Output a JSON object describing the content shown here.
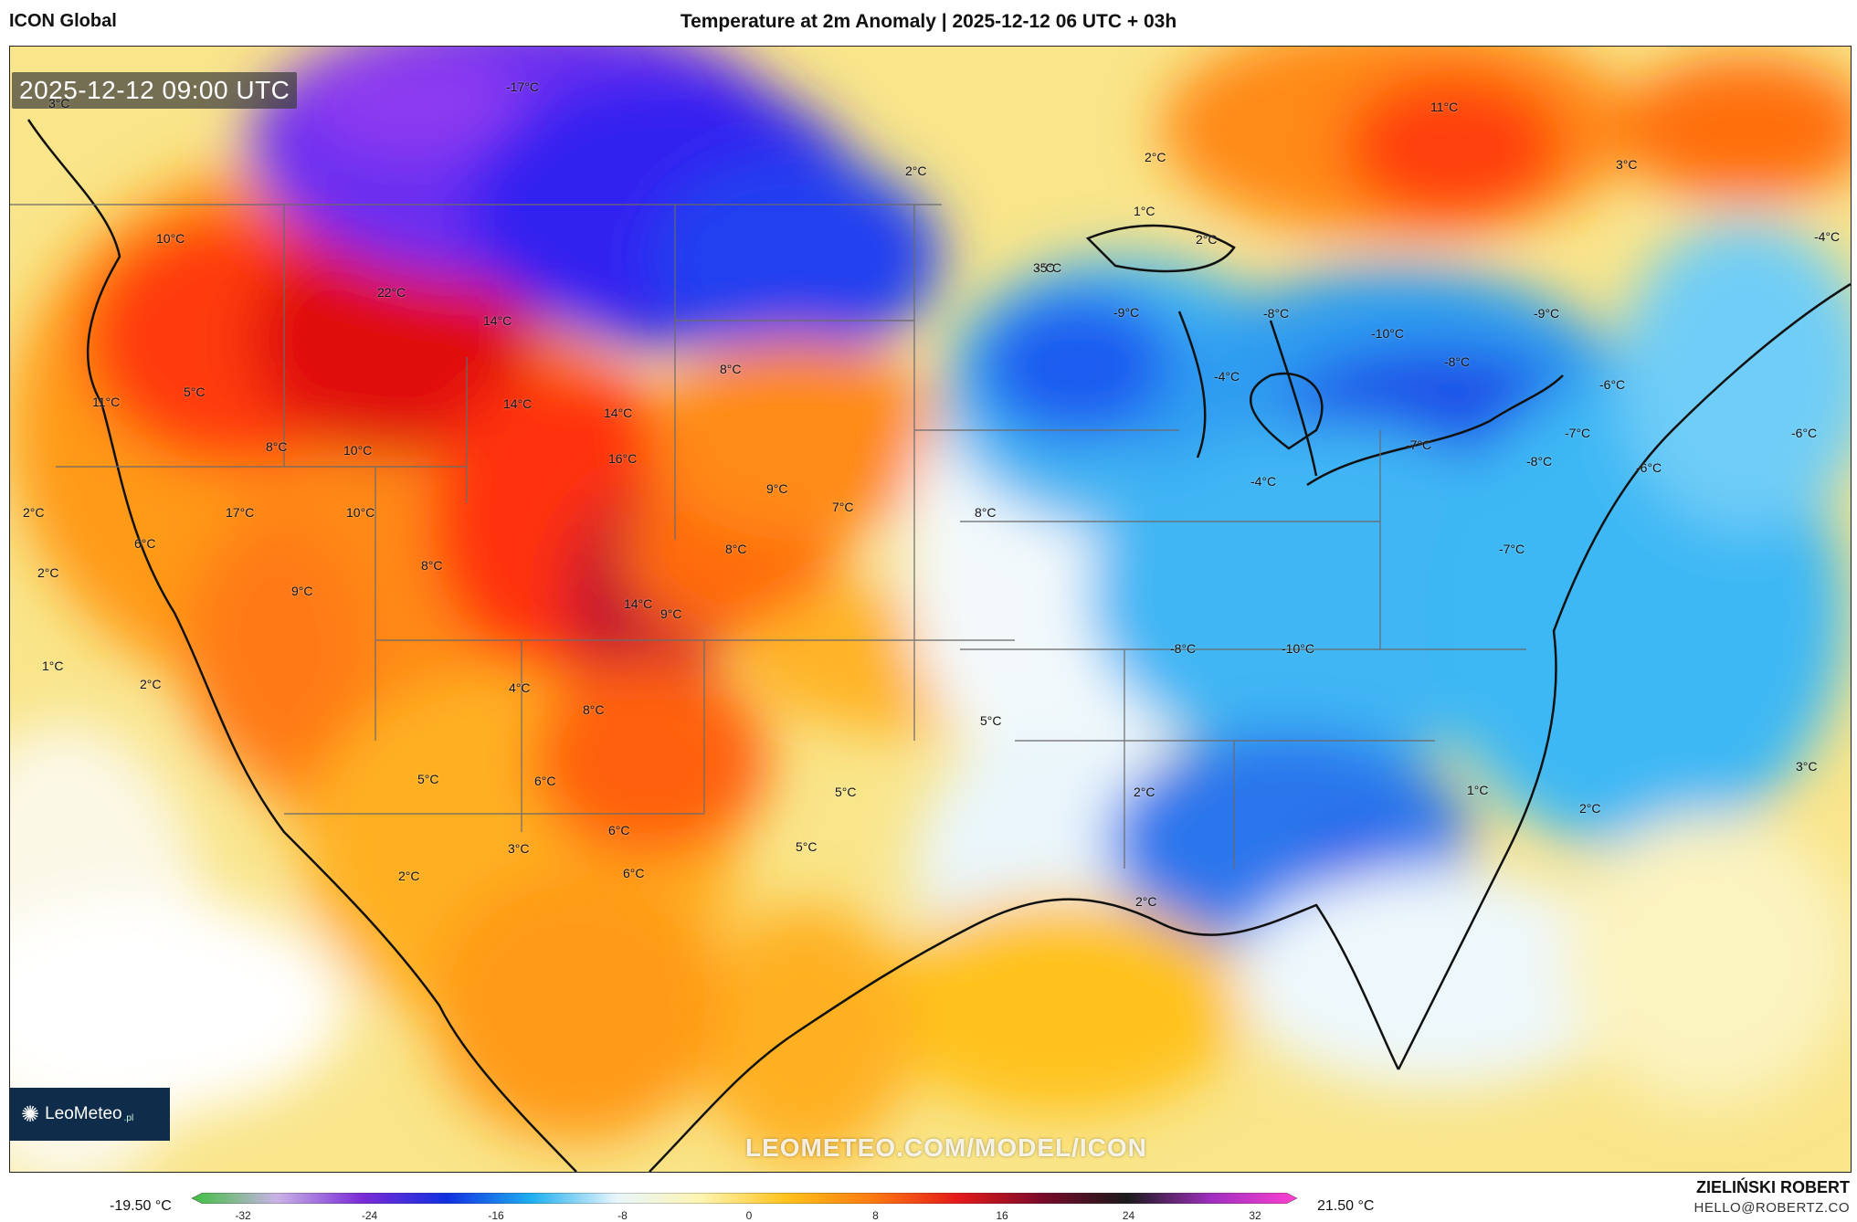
{
  "header": {
    "model": "ICON Global",
    "title": "Temperature at 2m Anomaly | 2025-12-12 06 UTC + 03h"
  },
  "map": {
    "timestamp": "2025-12-12 09:00 UTC",
    "watermark": "LEOMETEO.COM/MODEL/ICON",
    "logo": {
      "name": "LeoMeteo",
      "suffix": ".pl"
    },
    "labels": [
      {
        "text": "-17°C"
      },
      {
        "text": "3°C"
      },
      {
        "text": "2°C"
      },
      {
        "text": "11°C"
      },
      {
        "text": "2°C"
      },
      {
        "text": "1°C"
      },
      {
        "text": "2°C"
      },
      {
        "text": "3°C"
      },
      {
        "text": "10°C"
      },
      {
        "text": "22°C"
      },
      {
        "text": "14°C"
      },
      {
        "text": "-5°C"
      },
      {
        "text": "-4°C"
      },
      {
        "text": "3°C"
      },
      {
        "text": "-9°C"
      },
      {
        "text": "-8°C"
      },
      {
        "text": "-10°C"
      },
      {
        "text": "-9°C"
      },
      {
        "text": "8°C"
      },
      {
        "text": "-8°C"
      },
      {
        "text": "5°C"
      },
      {
        "text": "-4°C"
      },
      {
        "text": "11°C"
      },
      {
        "text": "14°C"
      },
      {
        "text": "14°C"
      },
      {
        "text": "-7°C"
      },
      {
        "text": "-6°C"
      },
      {
        "text": "8°C"
      },
      {
        "text": "10°C"
      },
      {
        "text": "16°C"
      },
      {
        "text": "-7°C"
      },
      {
        "text": "-8°C"
      },
      {
        "text": "-6°C"
      },
      {
        "text": "-6°C"
      },
      {
        "text": "9°C"
      },
      {
        "text": "-4°C"
      },
      {
        "text": "17°C"
      },
      {
        "text": "2°C"
      },
      {
        "text": "10°C"
      },
      {
        "text": "7°C"
      },
      {
        "text": "6°C"
      },
      {
        "text": "8°C"
      },
      {
        "text": "2°C"
      },
      {
        "text": "8°C"
      },
      {
        "text": "-7°C"
      },
      {
        "text": "8°C"
      },
      {
        "text": "9°C"
      },
      {
        "text": "14°C"
      },
      {
        "text": "-8°C"
      },
      {
        "text": "-10°C"
      },
      {
        "text": "1°C"
      },
      {
        "text": "9°C"
      },
      {
        "text": "2°C"
      },
      {
        "text": "4°C"
      },
      {
        "text": "8°C"
      },
      {
        "text": "5°C"
      },
      {
        "text": "5°C"
      },
      {
        "text": "6°C"
      },
      {
        "text": "5°C"
      },
      {
        "text": "2°C"
      },
      {
        "text": "1°C"
      },
      {
        "text": "3°C"
      },
      {
        "text": "2°C"
      },
      {
        "text": "6°C"
      },
      {
        "text": "5°C"
      },
      {
        "text": "3°C"
      },
      {
        "text": "6°C"
      },
      {
        "text": "2°C"
      },
      {
        "text": "2°C"
      }
    ]
  },
  "colorbar": {
    "min_label": "-19.50 °C",
    "max_label": "21.50 °C",
    "ticks": [
      "-32",
      "-24",
      "-16",
      "-8",
      "0",
      "8",
      "16",
      "24",
      "32"
    ],
    "colors": [
      "#3fbf3f",
      "#c9b3e6",
      "#7b2bd6",
      "#1030e0",
      "#1fb0f0",
      "#e8f6fb",
      "#fff4b0",
      "#ffc21a",
      "#ff7a10",
      "#e41a1a",
      "#7a0a2a",
      "#1a1a1a",
      "#a030c0",
      "#ff40d0"
    ]
  },
  "footer": {
    "author": "ZIELIŃSKI ROBERT",
    "email": "HELLO@ROBERTZ.CO"
  }
}
